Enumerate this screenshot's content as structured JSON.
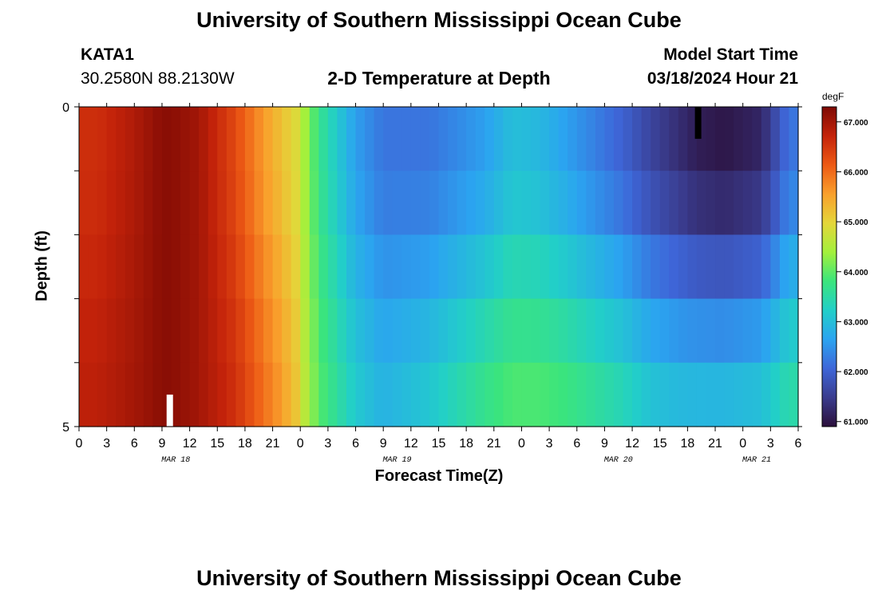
{
  "page": {
    "title_top": "University of Southern Mississippi Ocean Cube",
    "title_bottom": "University of Southern Mississippi Ocean Cube",
    "station_name": "KATA1",
    "station_coords": "30.2580N  88.2130W",
    "plot_title": "2-D Temperature at Depth",
    "model_start_label": "Model Start Time",
    "model_start_value": "03/18/2024 Hour 21"
  },
  "chart_data": {
    "type": "heatmap",
    "title": "2-D Temperature at Depth",
    "xlabel": "Forecast Time(Z)",
    "ylabel": "Depth (ft)",
    "x_tick_labels": [
      "0",
      "3",
      "6",
      "9",
      "12",
      "15",
      "18",
      "21",
      "0",
      "3",
      "6",
      "9",
      "12",
      "15",
      "18",
      "21",
      "0",
      "3",
      "6",
      "9",
      "12",
      "15",
      "18",
      "21",
      "0",
      "3",
      "6"
    ],
    "date_labels": [
      {
        "label": "MAR 18",
        "hour_index": 10.5
      },
      {
        "label": "MAR 19",
        "hour_index": 34.5
      },
      {
        "label": "MAR 20",
        "hour_index": 58.5
      },
      {
        "label": "MAR 21",
        "hour_index": 73.5
      }
    ],
    "y_tick_labels": [
      "0",
      "5"
    ],
    "ylim": [
      0,
      5
    ],
    "x_hours": 78,
    "depth_rows": 5,
    "units": "degF",
    "colorbar": {
      "label": "degF",
      "min": 60.9,
      "max": 67.3,
      "ticks": [
        "67.000",
        "66.000",
        "65.000",
        "64.000",
        "63.000",
        "62.000",
        "61.000"
      ],
      "tick_values": [
        67,
        66,
        65,
        64,
        63,
        62,
        61
      ],
      "colors": [
        "#2b0f3a",
        "#3a3c8e",
        "#3e66d8",
        "#2ba4f0",
        "#22cfc8",
        "#3be57c",
        "#a3f03c",
        "#e4d63a",
        "#f9a02c",
        "#ed5a15",
        "#c4230a",
        "#7e0a04"
      ]
    },
    "temperature_time_keyframes": {
      "hours": [
        0,
        2,
        6,
        9,
        10,
        13,
        17,
        20,
        22,
        23.5,
        24.5,
        26,
        30,
        33,
        38,
        44,
        47,
        50,
        53,
        56,
        59,
        62,
        65,
        67,
        70,
        74,
        77
      ],
      "surface": [
        66.6,
        66.6,
        66.9,
        67.2,
        67.2,
        67.0,
        66.3,
        65.6,
        65.2,
        64.9,
        64.4,
        63.7,
        62.6,
        62.2,
        62.2,
        62.6,
        63.0,
        62.9,
        62.6,
        62.3,
        62.0,
        61.6,
        61.3,
        61.1,
        61.0,
        61.2,
        62.2
      ],
      "bottom": [
        66.8,
        66.8,
        67.0,
        67.2,
        67.2,
        67.0,
        66.6,
        66.0,
        65.6,
        65.2,
        64.6,
        64.0,
        63.2,
        62.9,
        63.2,
        63.8,
        64.0,
        64.0,
        63.9,
        63.7,
        63.5,
        63.2,
        63.1,
        63.1,
        63.1,
        63.2,
        63.6
      ]
    },
    "depth_weights": [
      0,
      0.12,
      0.4,
      0.68,
      0.9
    ]
  }
}
